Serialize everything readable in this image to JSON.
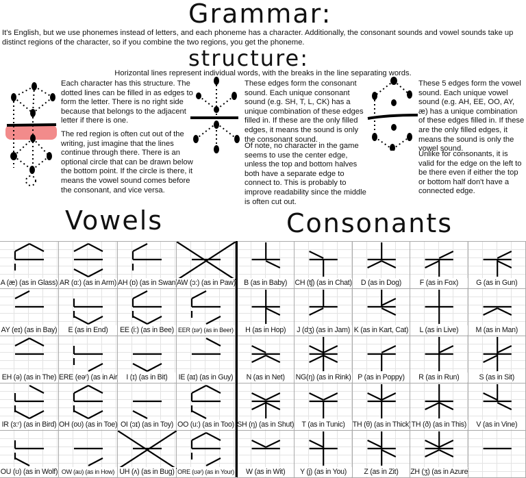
{
  "grammar": {
    "title": "Grammar:",
    "intro": "It's English, but we use phonemes instead of letters, and each phoneme has a character. Additionally, the consonant sounds and vowel sounds take up distinct regions of the character, so if you combine the two regions, you get the phoneme."
  },
  "structure": {
    "title": "structure:",
    "subtitle": "Horizontal lines represent individual words, with the breaks in the line separating words.",
    "col1_p1": "Each character has this structure. The dotted lines can be filled in as edges to form the letter. There is no right side because that belongs to the adjacent letter if there is one.",
    "col1_p2": "The red region is often cut out of the writing, just imagine that the lines continue through there. There is an optional circle that can be drawn below the bottom point. If the circle is there, it means the vowel sound comes before the consonant, and vice versa.",
    "col2_p1": "These edges form the consonant sound. Each unique consonant sound (e.g. SH, T, L, CK) has a unique combination of these edges filled in. If these are the only filled edges, it means the sound is only the consonant sound.",
    "col2_p2": "Of note, no character in the game seems to use the center edge, unless the top and bottom halves both have a separate edge to connect to. This is probably to improve readability since the middle is often cut out.",
    "col3_p1": "These 5 edges form the vowel sound. Each unique vowel sound (e.g. AH, EE, OO, AY, æ) has a unique combination of these edges filled in. If these are the only filled edges, it means the sound is only the vowel sound.",
    "col3_p2": "Unlike for consonants, it is valid for the edge on the left to be there even if either the top or bottom half don't have a connected edge.",
    "red_region_color": "#f28b8b"
  },
  "vowels": {
    "title": "Vowels",
    "items": [
      {
        "label": "A (æ) (as in Glass)",
        "edges": [
          "TL",
          "TR",
          "UL",
          "LL"
        ]
      },
      {
        "label": "AR (ɑ:) (as in Arm)",
        "edges": [
          "TL",
          "TR",
          "BL",
          "BR"
        ]
      },
      {
        "label": "AH (ɒ) (as in Swan)",
        "edges": [
          "TL",
          "UL",
          "LL"
        ]
      },
      {
        "label": "AW (ɔ:) (as in Paw)",
        "edges": [
          "X"
        ]
      },
      {
        "label": "AY (eɪ) (as in Bay)",
        "edges": [
          "TL"
        ]
      },
      {
        "label": "E (as in End)",
        "edges": [
          "UL",
          "LL",
          "BL",
          "BR"
        ]
      },
      {
        "label": "EE (i:) (as in Bee)",
        "edges": [
          "TL",
          "UL",
          "LL",
          "BL",
          "BR"
        ]
      },
      {
        "label": "EER (ɪəʳ) (as in Beer)",
        "edges": [
          "TL",
          "UL",
          "LL",
          "BR"
        ],
        "small": true
      },
      {
        "label": "EH (ə) (as in The)",
        "edges": [
          "TL",
          "TR"
        ]
      },
      {
        "label": "ERE (eəʳ) (as in Air)",
        "edges": [
          "UL",
          "LL",
          "BR"
        ]
      },
      {
        "label": "I (ɪ) (as in Bit)",
        "edges": [
          "BL",
          "BR"
        ]
      },
      {
        "label": "IE (aɪ) (as in Guy)",
        "edges": [
          "TR"
        ]
      },
      {
        "label": "IR (ɜ:ʳ) (as in Bird)",
        "edges": [
          "TR",
          "UL",
          "LL",
          "BL",
          "BR"
        ]
      },
      {
        "label": "OH (oʊ) (as in Toe)",
        "edges": [
          "TL",
          "TR",
          "UL",
          "LL",
          "BL",
          "BR"
        ]
      },
      {
        "label": "OI (ɔɪ) (as in Toy)",
        "edges": [
          "BL"
        ]
      },
      {
        "label": "OO (u:) (as in Too)",
        "edges": [
          "TL",
          "TR",
          "UL",
          "LL",
          "BL"
        ]
      },
      {
        "label": "OU (ʊ) (as in Wolf)",
        "edges": [
          "UL",
          "LL",
          "BL"
        ]
      },
      {
        "label": "OW (aʊ) (as in How)",
        "edges": [
          "BR"
        ],
        "small": true
      },
      {
        "label": "UH (ʌ) (as in Bug)",
        "edges": [
          "X"
        ]
      },
      {
        "label": "ORE (ʊəʳ) (as in Your)",
        "edges": [
          "TL",
          "TR",
          "UL",
          "LL",
          "BR"
        ],
        "small": true
      }
    ]
  },
  "consonants": {
    "title": "Consonants",
    "items": [
      {
        "label": "B (as in Baby)",
        "edges": [
          "up",
          "DR"
        ]
      },
      {
        "label": "CH (tʃ) (as in Chat)",
        "edges": [
          "UL",
          "down"
        ]
      },
      {
        "label": "D (as in Dog)",
        "edges": [
          "up",
          "DL",
          "DR"
        ]
      },
      {
        "label": "F (as in Fox)",
        "edges": [
          "UR",
          "DL",
          "down"
        ]
      },
      {
        "label": "G (as in Gun)",
        "edges": [
          "UR",
          "down",
          "DR"
        ]
      },
      {
        "label": "H (as in Hop)",
        "edges": [
          "up",
          "down",
          "DR"
        ]
      },
      {
        "label": "J (dʒ) (as in Jam)",
        "edges": [
          "up",
          "DL"
        ]
      },
      {
        "label": "K (as in Kart, Cat)",
        "edges": [
          "up",
          "UR",
          "DR"
        ]
      },
      {
        "label": "L (as in Live)",
        "edges": [
          "up",
          "down"
        ]
      },
      {
        "label": "M (as in Man)",
        "edges": [
          "DL",
          "DR"
        ]
      },
      {
        "label": "N (as in Net)",
        "edges": [
          "UL",
          "DL",
          "DR"
        ]
      },
      {
        "label": "NG(ŋ) (as in Rink)",
        "edges": [
          "up",
          "UL",
          "UR",
          "DL",
          "DR",
          "down"
        ]
      },
      {
        "label": "P (as in Poppy)",
        "edges": [
          "UR",
          "down"
        ]
      },
      {
        "label": "R (as in Run)",
        "edges": [
          "up",
          "UR",
          "down"
        ]
      },
      {
        "label": "S (as in Sit)",
        "edges": [
          "up",
          "UR",
          "DL",
          "down"
        ]
      },
      {
        "label": "SH (ŋ) (as in Shut)",
        "edges": [
          "UL",
          "UR",
          "DL",
          "DR",
          "down"
        ]
      },
      {
        "label": "T (as in Tunic)",
        "edges": [
          "UL",
          "UR",
          "down"
        ]
      },
      {
        "label": "TH (θ) (as in Thick)",
        "edges": [
          "up",
          "UL",
          "UR",
          "down"
        ]
      },
      {
        "label": "TH (ð) (as in This)",
        "edges": [
          "up",
          "DL",
          "DR",
          "down"
        ]
      },
      {
        "label": "V (as in Vine)",
        "edges": [
          "up",
          "UL",
          "DR"
        ]
      },
      {
        "label": "W (as in Wit)",
        "edges": [
          "UL",
          "UR"
        ]
      },
      {
        "label": "Y (j) (as in You)",
        "edges": [
          "up",
          "UL",
          "down"
        ]
      },
      {
        "label": "Z (as in Zit)",
        "edges": [
          "up",
          "UL",
          "down",
          "DR"
        ]
      },
      {
        "label": "ZH (ʒ) (as in Azure)",
        "edges": [
          "up",
          "UL",
          "UR",
          "DL",
          "DR"
        ]
      },
      {
        "label": "",
        "edges": []
      }
    ]
  }
}
